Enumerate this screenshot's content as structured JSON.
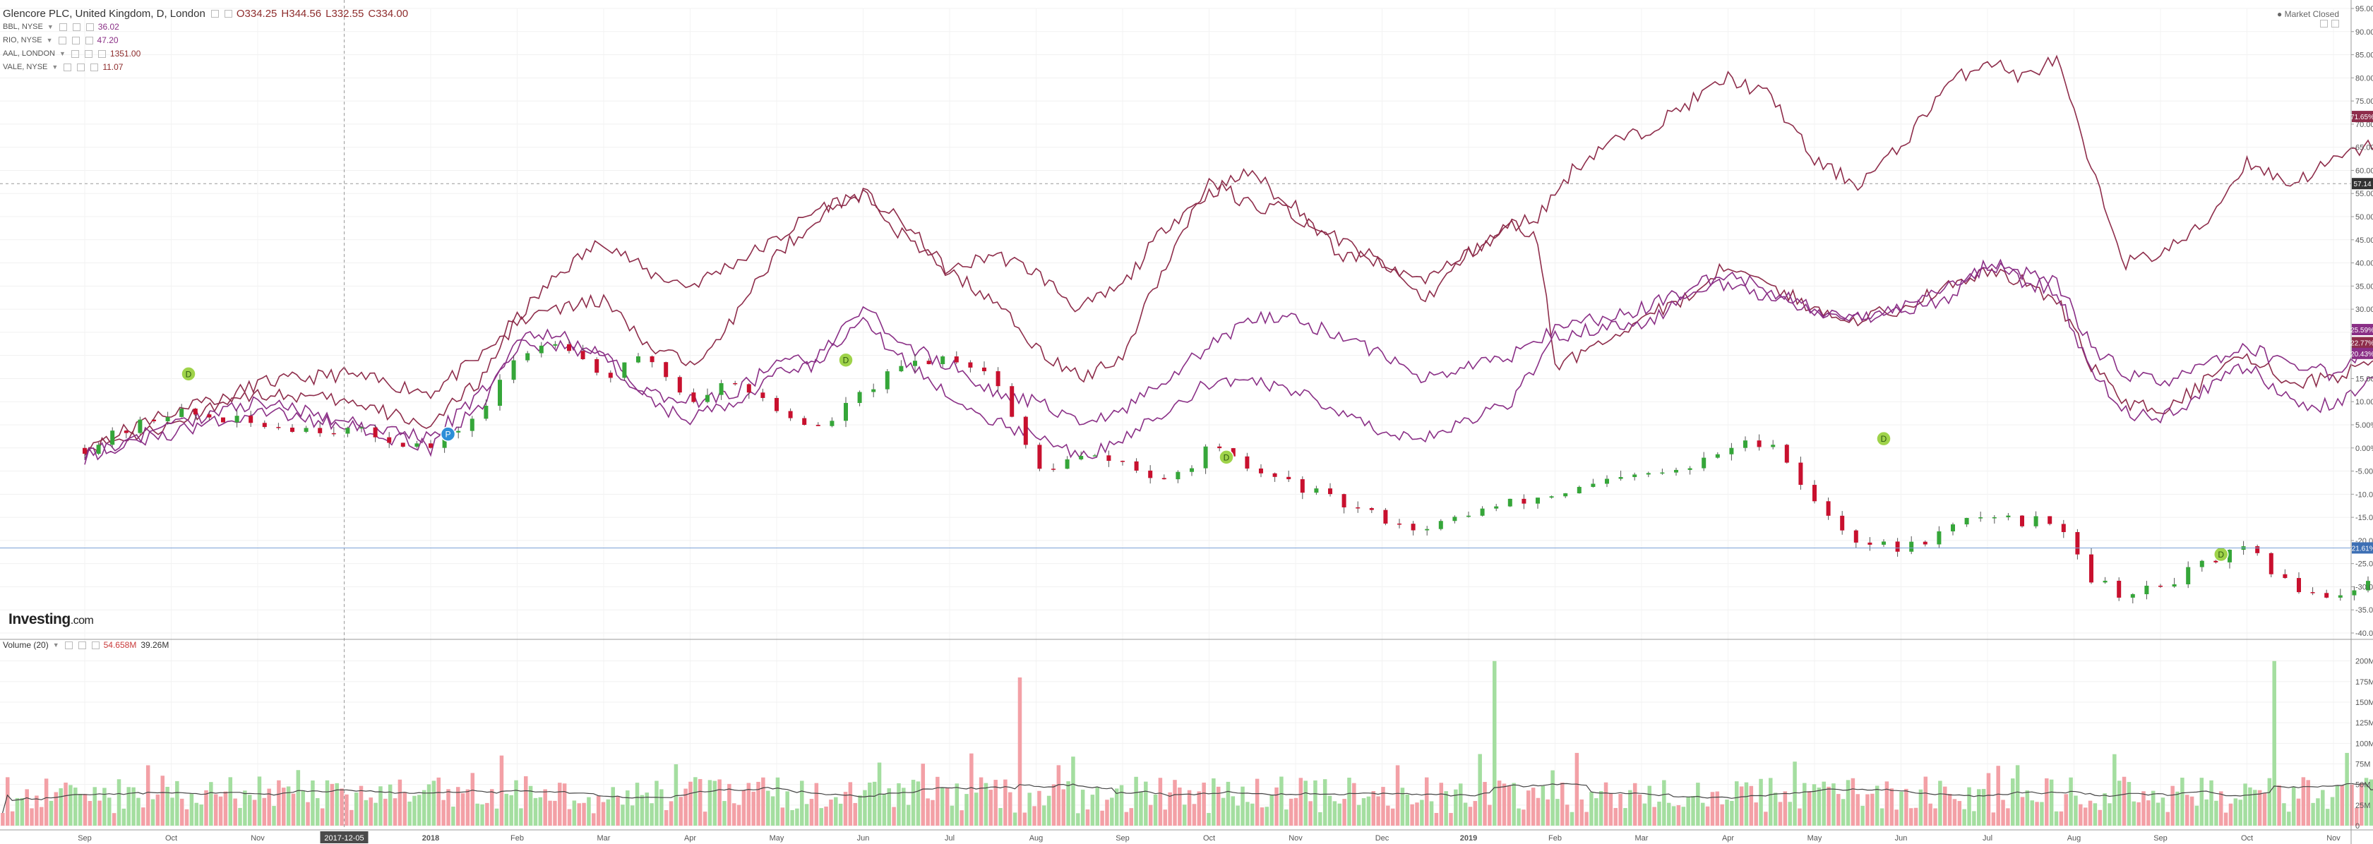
{
  "header": {
    "title": "Glencore PLC, United Kingdom, D, London",
    "open": "O334.25",
    "high": "H344.56",
    "low": "L332.55",
    "close": "C334.00"
  },
  "comparisons": [
    {
      "label": "BBL, NYSE",
      "value": "36.02",
      "color": "#8a2f86"
    },
    {
      "label": "RIO, NYSE",
      "value": "47.20",
      "color": "#8a2f86"
    },
    {
      "label": "AAL, LONDON",
      "value": "1351.00",
      "color": "#8e2d4b"
    },
    {
      "label": "VALE, NYSE",
      "value": "11.07",
      "color": "#8e2d4b"
    }
  ],
  "status": "Market Closed",
  "brand": {
    "name": "Investing",
    "suffix": ".com"
  },
  "volume_legend": {
    "label": "Volume (20)",
    "value1": "54.658M",
    "value2": "39.26M"
  },
  "colors": {
    "up": "#35a639",
    "down": "#c8102e",
    "vol_up": "#a4dea0",
    "vol_down": "#f3a0a6",
    "line_a": "#8e2d4b",
    "line_b": "#8a2f86"
  },
  "chart_data": {
    "type": "line",
    "x_axis": {
      "labels": [
        "Sep",
        "Oct",
        "Nov",
        "2017-12-05",
        "2018",
        "Feb",
        "Mar",
        "Apr",
        "May",
        "Jun",
        "Jul",
        "Aug",
        "Sep",
        "Oct",
        "Nov",
        "Dec",
        "2019",
        "Feb",
        "Mar",
        "Apr",
        "May",
        "Jun",
        "Jul",
        "Aug",
        "Sep",
        "Oct",
        "Nov"
      ],
      "highlighted": "2017-12-05"
    },
    "y_axis": {
      "unit": "%",
      "range": [
        -40,
        95
      ],
      "ticks": [
        "95.00%",
        "90.00%",
        "85.00%",
        "80.00%",
        "75.00%",
        "70.00%",
        "65.00%",
        "60.00%",
        "55.00%",
        "50.00%",
        "45.00%",
        "40.00%",
        "35.00%",
        "30.00%",
        "25.00%",
        "20.00%",
        "15.00%",
        "10.00%",
        "5.00%",
        "0.00%",
        "-5.00%",
        "-10.00%",
        "-15.00%",
        "-20.00%",
        "-25.00%",
        "-30.00%",
        "-35.00%",
        "-40.00%"
      ]
    },
    "price_markers": [
      {
        "text": "71.65%",
        "value": 71.65,
        "color": "#8e2d4b"
      },
      {
        "text": "57.14",
        "value": 57.14,
        "color": "#333333"
      },
      {
        "text": "25.59%",
        "value": 25.59,
        "color": "#8a2f86"
      },
      {
        "text": "22.77%",
        "value": 22.77,
        "color": "#8e2d4b"
      },
      {
        "text": "20.43%",
        "value": 20.43,
        "color": "#8a2f86"
      },
      {
        "text": "-21.61%",
        "value": -21.61,
        "color": "#3d6fb4"
      }
    ],
    "series": [
      {
        "name": "AAL, LONDON",
        "color": "#8e2d4b",
        "points": [
          [
            0,
            0
          ],
          [
            1,
            5
          ],
          [
            2,
            14
          ],
          [
            3,
            16
          ],
          [
            4,
            12
          ],
          [
            4.6,
            20
          ],
          [
            5,
            28
          ],
          [
            5.5,
            38
          ],
          [
            6,
            45
          ],
          [
            6.5,
            38
          ],
          [
            7,
            35
          ],
          [
            7.5,
            40
          ],
          [
            8,
            45
          ],
          [
            8.5,
            52
          ],
          [
            9,
            55
          ],
          [
            9.5,
            48
          ],
          [
            10,
            38
          ],
          [
            10.5,
            42
          ],
          [
            11,
            38
          ],
          [
            11.5,
            30
          ],
          [
            12,
            35
          ],
          [
            12.5,
            48
          ],
          [
            13,
            55
          ],
          [
            13.5,
            60
          ],
          [
            14,
            50
          ],
          [
            14.5,
            45
          ],
          [
            15,
            40
          ],
          [
            15.5,
            32
          ],
          [
            16,
            42
          ],
          [
            16.5,
            48
          ],
          [
            16.8,
            50
          ],
          [
            17.2,
            60
          ],
          [
            17.6,
            66
          ],
          [
            18,
            68
          ],
          [
            18.5,
            74
          ],
          [
            19,
            80
          ],
          [
            19.5,
            76
          ],
          [
            20,
            62
          ],
          [
            20.5,
            57
          ],
          [
            21,
            65
          ],
          [
            21.5,
            78
          ],
          [
            22,
            84
          ],
          [
            22.4,
            80
          ],
          [
            22.8,
            84
          ],
          [
            23.2,
            60
          ],
          [
            23.6,
            40
          ],
          [
            24,
            42
          ],
          [
            24.5,
            48
          ],
          [
            25,
            62
          ],
          [
            25.5,
            57
          ],
          [
            26,
            62
          ],
          [
            26.5,
            66
          ],
          [
            26.8,
            71.65
          ]
        ]
      },
      {
        "name": "VALE, NYSE",
        "color": "#8e2d4b",
        "points": [
          [
            0,
            0
          ],
          [
            1,
            8
          ],
          [
            2,
            12
          ],
          [
            3,
            10
          ],
          [
            4,
            5
          ],
          [
            4.6,
            15
          ],
          [
            5,
            28
          ],
          [
            5.5,
            30
          ],
          [
            6,
            32
          ],
          [
            6.5,
            22
          ],
          [
            7,
            18
          ],
          [
            7.5,
            28
          ],
          [
            8,
            42
          ],
          [
            8.5,
            50
          ],
          [
            9,
            55
          ],
          [
            9.5,
            45
          ],
          [
            10,
            38
          ],
          [
            10.5,
            32
          ],
          [
            11,
            22
          ],
          [
            11.5,
            15
          ],
          [
            12,
            20
          ],
          [
            12.5,
            40
          ],
          [
            13,
            58
          ],
          [
            13.5,
            52
          ],
          [
            14,
            52
          ],
          [
            14.5,
            42
          ],
          [
            15,
            40
          ],
          [
            15.5,
            36
          ],
          [
            16,
            42
          ],
          [
            16.5,
            48
          ],
          [
            16.8,
            45
          ],
          [
            17,
            18
          ],
          [
            17.5,
            22
          ],
          [
            18,
            28
          ],
          [
            18.5,
            32
          ],
          [
            19,
            40
          ],
          [
            19.5,
            35
          ],
          [
            20,
            30
          ],
          [
            20.5,
            28
          ],
          [
            21,
            30
          ],
          [
            21.5,
            35
          ],
          [
            22,
            38
          ],
          [
            22.4,
            36
          ],
          [
            22.8,
            32
          ],
          [
            23.2,
            18
          ],
          [
            23.6,
            10
          ],
          [
            24,
            8
          ],
          [
            24.5,
            14
          ],
          [
            25,
            20
          ],
          [
            25.5,
            14
          ],
          [
            26,
            15
          ],
          [
            26.5,
            20
          ],
          [
            26.8,
            22.77
          ]
        ]
      },
      {
        "name": "BBL, NYSE",
        "color": "#8a2f86",
        "points": [
          [
            0,
            -2
          ],
          [
            1,
            5
          ],
          [
            2,
            10
          ],
          [
            3,
            6
          ],
          [
            4,
            2
          ],
          [
            4.6,
            12
          ],
          [
            5,
            22
          ],
          [
            5.5,
            22
          ],
          [
            6,
            20
          ],
          [
            6.5,
            12
          ],
          [
            7,
            10
          ],
          [
            7.5,
            12
          ],
          [
            8,
            18
          ],
          [
            8.5,
            20
          ],
          [
            9,
            30
          ],
          [
            9.5,
            22
          ],
          [
            10,
            18
          ],
          [
            10.5,
            12
          ],
          [
            11,
            10
          ],
          [
            11.5,
            5
          ],
          [
            12,
            8
          ],
          [
            12.5,
            15
          ],
          [
            13,
            22
          ],
          [
            13.5,
            28
          ],
          [
            14,
            28
          ],
          [
            14.5,
            24
          ],
          [
            15,
            20
          ],
          [
            15.5,
            15
          ],
          [
            16,
            18
          ],
          [
            16.5,
            20
          ],
          [
            17,
            26
          ],
          [
            17.5,
            28
          ],
          [
            18,
            30
          ],
          [
            18.5,
            34
          ],
          [
            19,
            38
          ],
          [
            19.5,
            34
          ],
          [
            20,
            30
          ],
          [
            20.5,
            28
          ],
          [
            21,
            30
          ],
          [
            21.5,
            34
          ],
          [
            22,
            40
          ],
          [
            22.4,
            38
          ],
          [
            22.8,
            36
          ],
          [
            23.2,
            22
          ],
          [
            23.6,
            16
          ],
          [
            24,
            14
          ],
          [
            24.5,
            18
          ],
          [
            25,
            22
          ],
          [
            25.5,
            18
          ],
          [
            26,
            16
          ],
          [
            26.5,
            22
          ],
          [
            26.8,
            25.59
          ]
        ]
      },
      {
        "name": "RIO, NYSE",
        "color": "#8a2f86",
        "points": [
          [
            0,
            -1
          ],
          [
            1,
            3
          ],
          [
            2,
            8
          ],
          [
            3,
            5
          ],
          [
            4,
            0
          ],
          [
            4.6,
            10
          ],
          [
            5,
            24
          ],
          [
            5.5,
            24
          ],
          [
            6,
            20
          ],
          [
            6.5,
            10
          ],
          [
            7,
            6
          ],
          [
            7.5,
            10
          ],
          [
            8,
            16
          ],
          [
            8.5,
            18
          ],
          [
            9,
            28
          ],
          [
            9.5,
            18
          ],
          [
            10,
            12
          ],
          [
            10.5,
            6
          ],
          [
            11,
            2
          ],
          [
            11.5,
            -2
          ],
          [
            12,
            2
          ],
          [
            12.5,
            8
          ],
          [
            13,
            14
          ],
          [
            13.5,
            15
          ],
          [
            14,
            12
          ],
          [
            14.5,
            8
          ],
          [
            15,
            4
          ],
          [
            15.5,
            2
          ],
          [
            16,
            6
          ],
          [
            16.5,
            10
          ],
          [
            17,
            24
          ],
          [
            17.5,
            26
          ],
          [
            18,
            26
          ],
          [
            18.5,
            32
          ],
          [
            19,
            36
          ],
          [
            19.5,
            32
          ],
          [
            20,
            30
          ],
          [
            20.5,
            28
          ],
          [
            21,
            30
          ],
          [
            21.5,
            32
          ],
          [
            22,
            40
          ],
          [
            22.4,
            36
          ],
          [
            22.8,
            34
          ],
          [
            23.2,
            16
          ],
          [
            23.6,
            8
          ],
          [
            24,
            6
          ],
          [
            24.5,
            12
          ],
          [
            25,
            18
          ],
          [
            25.5,
            10
          ],
          [
            26,
            9
          ],
          [
            26.5,
            16
          ],
          [
            26.8,
            20.43
          ]
        ]
      }
    ],
    "main_series": {
      "name": "Glencore PLC",
      "type": "candlestick",
      "points": [
        [
          0,
          0
        ],
        [
          1,
          8
        ],
        [
          2,
          5
        ],
        [
          3,
          4
        ],
        [
          4,
          0
        ],
        [
          4.6,
          8
        ],
        [
          5,
          20
        ],
        [
          5.5,
          24
        ],
        [
          6,
          15
        ],
        [
          6.5,
          20
        ],
        [
          7,
          10
        ],
        [
          7.5,
          15
        ],
        [
          8,
          8
        ],
        [
          8.5,
          4
        ],
        [
          9,
          12
        ],
        [
          9.5,
          18
        ],
        [
          10,
          20
        ],
        [
          10.5,
          16
        ],
        [
          11,
          -5
        ],
        [
          11.5,
          -2
        ],
        [
          12,
          -3
        ],
        [
          12.5,
          -8
        ],
        [
          13,
          0
        ],
        [
          13.5,
          -5
        ],
        [
          14,
          -8
        ],
        [
          14.5,
          -12
        ],
        [
          15,
          -15
        ],
        [
          15.5,
          -18
        ],
        [
          16,
          -14
        ],
        [
          16.5,
          -12
        ],
        [
          17,
          -10
        ],
        [
          17.5,
          -8
        ],
        [
          18,
          -6
        ],
        [
          18.5,
          -5
        ],
        [
          19,
          0
        ],
        [
          19.5,
          2
        ],
        [
          20,
          -12
        ],
        [
          20.5,
          -20
        ],
        [
          21,
          -22
        ],
        [
          21.5,
          -18
        ],
        [
          22,
          -14
        ],
        [
          22.4,
          -16
        ],
        [
          22.8,
          -15
        ],
        [
          23.2,
          -28
        ],
        [
          23.6,
          -32
        ],
        [
          24,
          -30
        ],
        [
          24.5,
          -25
        ],
        [
          25,
          -22
        ],
        [
          25.5,
          -30
        ],
        [
          26,
          -32
        ],
        [
          26.5,
          -28
        ],
        [
          26.8,
          -21.61
        ]
      ]
    },
    "event_markers": [
      {
        "label": "D",
        "x": 1.2,
        "y": 16
      },
      {
        "label": "P",
        "x": 4.2,
        "y": 3
      },
      {
        "label": "D",
        "x": 8.8,
        "y": 19
      },
      {
        "label": "D",
        "x": 13.2,
        "y": -2
      },
      {
        "label": "D",
        "x": 20.8,
        "y": 2
      },
      {
        "label": "D",
        "x": 24.7,
        "y": -23
      },
      {
        "label": "P",
        "x": 26.6,
        "y": -27
      },
      {
        "label": "P",
        "x": 26.7,
        "y": -20
      }
    ],
    "volume": {
      "label": "Volume (20)",
      "unit": "M",
      "range": [
        0,
        210
      ],
      "ticks": [
        "200M",
        "175M",
        "150M",
        "125M",
        "100M",
        "75M",
        "50M",
        "25M",
        "0"
      ],
      "spikes": [
        {
          "x": 10.8,
          "value": 180,
          "dir": "down"
        },
        {
          "x": 16.3,
          "value": 200,
          "dir": "up"
        },
        {
          "x": 25.3,
          "value": 200,
          "dir": "up"
        }
      ],
      "typical_range": [
        15,
        60
      ]
    }
  }
}
